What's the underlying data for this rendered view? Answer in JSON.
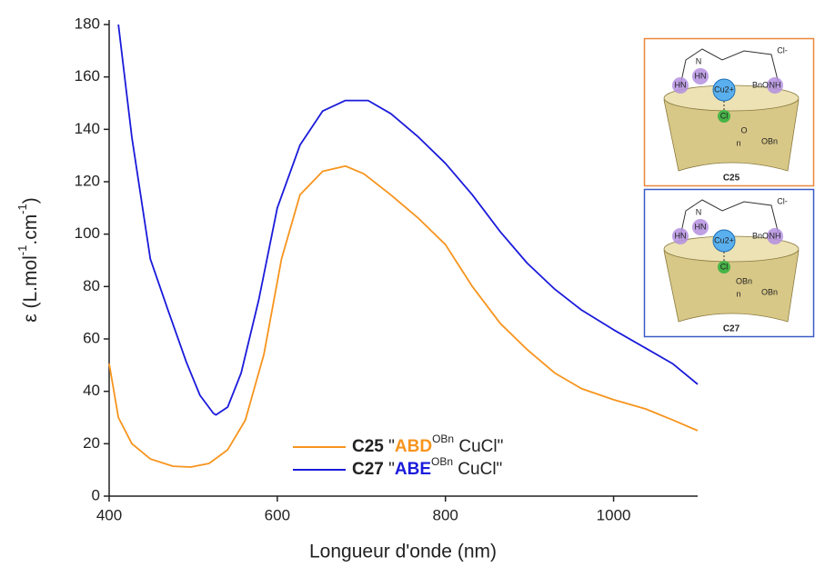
{
  "chart_data": {
    "type": "line",
    "x_label": "Longueur d'onde (nm)",
    "y_label_parts": [
      "ε (L.mol",
      "-1",
      ".cm",
      "-1",
      ")"
    ],
    "xlim": [
      400,
      1100
    ],
    "ylim": [
      0,
      180
    ],
    "xticks": [
      400,
      600,
      800,
      1000
    ],
    "yticks": [
      0,
      20,
      40,
      60,
      80,
      100,
      120,
      140,
      160,
      180
    ],
    "series": [
      {
        "name_parts": [
          "C25",
          " \"",
          "ABD",
          "OBn",
          " CuCl\""
        ],
        "color": "#f7941d",
        "highlight": "#f7941d",
        "x": [
          400,
          411,
          427,
          449,
          476,
          497,
          519,
          541,
          562,
          584,
          605,
          627,
          654,
          681,
          703,
          735,
          768,
          800,
          832,
          865,
          897,
          930,
          962,
          1000,
          1038,
          1070,
          1100
        ],
        "values": [
          50.6,
          30,
          20,
          14.2,
          11.4,
          11.1,
          12.5,
          17.7,
          29,
          54,
          90.5,
          115,
          124,
          126,
          123,
          115,
          106,
          96,
          80,
          66,
          56,
          47,
          41,
          36.8,
          33.3,
          29.1,
          25
        ]
      },
      {
        "name_parts": [
          "C27",
          " \"",
          "ABE",
          "OBn",
          " CuCl\""
        ],
        "color": "#1a1adb",
        "highlight": "#1a1adb",
        "x": [
          411,
          427,
          449,
          470,
          492,
          508,
          524,
          527,
          541,
          557,
          578,
          600,
          627,
          654,
          681,
          708,
          735,
          768,
          800,
          832,
          865,
          897,
          930,
          962,
          1000,
          1038,
          1070,
          1100
        ],
        "values": [
          180,
          137,
          90.5,
          71,
          51,
          38.5,
          31.6,
          31,
          34,
          47,
          75,
          110,
          134,
          147,
          151,
          151,
          146,
          137,
          127,
          115,
          101,
          89,
          79,
          71,
          63.5,
          56.5,
          50.6,
          42.7
        ]
      }
    ],
    "insets": [
      {
        "caption": "C25",
        "color": "#e9873a",
        "labels": [
          "Cl-",
          "N",
          "HN",
          "HN",
          "NH",
          "Cu2+",
          "Cl",
          "BnO",
          "O",
          "OBn",
          "n"
        ]
      },
      {
        "caption": "C27",
        "color": "#3a5bc7",
        "labels": [
          "Cl-",
          "N",
          "HN",
          "HN",
          "NH",
          "Cu2+",
          "Cl",
          "BnO",
          "OBn",
          "OBn",
          "n"
        ]
      }
    ]
  }
}
